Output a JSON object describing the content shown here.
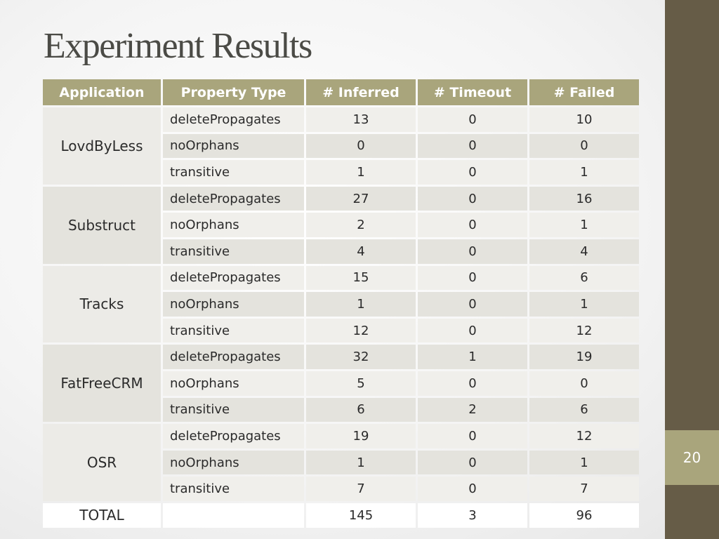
{
  "slide": {
    "title": "Experiment Results",
    "page_number": "20",
    "colors": {
      "header_bg": "#a9a57c",
      "side_bar": "#665c47",
      "page_num_box": "#a9a57c",
      "title_text": "#4b4b46"
    }
  },
  "table": {
    "headers": [
      "Application",
      "Property Type",
      "# Inferred",
      "# Timeout",
      "# Failed"
    ],
    "groups": [
      {
        "application": "LovdByLess",
        "rows": [
          {
            "property": "deletePropagates",
            "inferred": "13",
            "timeout": "0",
            "failed": "10"
          },
          {
            "property": "noOrphans",
            "inferred": "0",
            "timeout": "0",
            "failed": "0"
          },
          {
            "property": "transitive",
            "inferred": "1",
            "timeout": "0",
            "failed": "1"
          }
        ]
      },
      {
        "application": "Substruct",
        "rows": [
          {
            "property": "deletePropagates",
            "inferred": "27",
            "timeout": "0",
            "failed": "16"
          },
          {
            "property": "noOrphans",
            "inferred": "2",
            "timeout": "0",
            "failed": "1"
          },
          {
            "property": "transitive",
            "inferred": "4",
            "timeout": "0",
            "failed": "4"
          }
        ]
      },
      {
        "application": "Tracks",
        "rows": [
          {
            "property": "deletePropagates",
            "inferred": "15",
            "timeout": "0",
            "failed": "6"
          },
          {
            "property": "noOrphans",
            "inferred": "1",
            "timeout": "0",
            "failed": "1"
          },
          {
            "property": "transitive",
            "inferred": "12",
            "timeout": "0",
            "failed": "12"
          }
        ]
      },
      {
        "application": "FatFreeCRM",
        "rows": [
          {
            "property": "deletePropagates",
            "inferred": "32",
            "timeout": "1",
            "failed": "19"
          },
          {
            "property": "noOrphans",
            "inferred": "5",
            "timeout": "0",
            "failed": "0"
          },
          {
            "property": "transitive",
            "inferred": "6",
            "timeout": "2",
            "failed": "6"
          }
        ]
      },
      {
        "application": "OSR",
        "rows": [
          {
            "property": "deletePropagates",
            "inferred": "19",
            "timeout": "0",
            "failed": "12"
          },
          {
            "property": "noOrphans",
            "inferred": "1",
            "timeout": "0",
            "failed": "1"
          },
          {
            "property": "transitive",
            "inferred": "7",
            "timeout": "0",
            "failed": "7"
          }
        ]
      }
    ],
    "total": {
      "label": "TOTAL",
      "property": "",
      "inferred": "145",
      "timeout": "3",
      "failed": "96"
    }
  }
}
